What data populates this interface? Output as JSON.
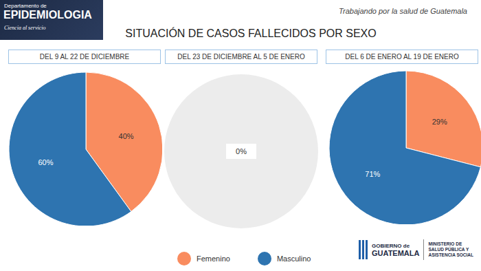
{
  "header": {
    "department": "Departamento de",
    "name": "EPIDEMIOLOGIA",
    "motto": "Ciencia al servicio",
    "slogan": "Trabajando por la salud de Guatemala"
  },
  "title": "SITUACIÓN DE CASOS FALLECIDOS POR SEXO",
  "chart_data": [
    {
      "type": "pie",
      "title": "DEL 9 AL 22 DE DICIEMBRE",
      "categories": [
        "Femenino",
        "Masculino"
      ],
      "values": [
        40,
        60
      ],
      "value_labels": [
        "40%",
        "60%"
      ],
      "colors": [
        "#f98c5f",
        "#2e74b0"
      ],
      "data_labels": true,
      "legend": "bottom"
    },
    {
      "type": "pie",
      "title": "DEL 23 DE DICIEMBRE AL 5 DE ENERO",
      "categories": [
        "Femenino",
        "Masculino"
      ],
      "values": [
        0,
        0
      ],
      "colors": [
        "#f98c5f",
        "#2e74b0"
      ],
      "data_labels": false,
      "annotation": "0%"
    },
    {
      "type": "pie",
      "title": "DEL 6 DE ENERO AL 19 DE ENERO",
      "categories": [
        "Femenino",
        "Masculino"
      ],
      "values": [
        29,
        71
      ],
      "value_labels": [
        "29%",
        "71%"
      ],
      "colors": [
        "#f98c5f",
        "#2e74b0"
      ],
      "data_labels": true
    }
  ],
  "footer": {
    "logo": [
      "GOBIERNO de",
      "GUATEMALA"
    ],
    "ministry": [
      "MINISTERIO DE",
      "SALUD PÚBLICA Y",
      "ASISTENCIA SOCIAL"
    ]
  }
}
